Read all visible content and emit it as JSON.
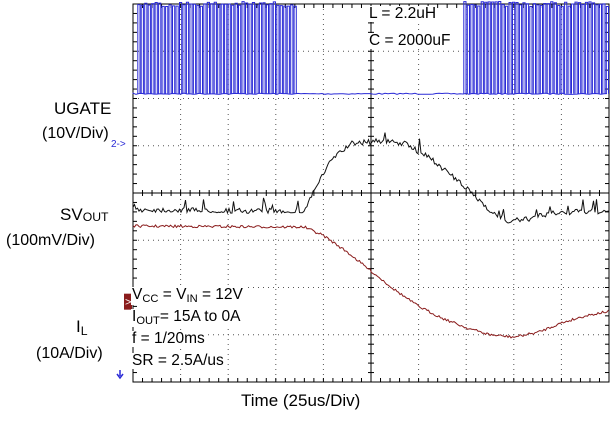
{
  "chart_data": {
    "type": "line",
    "title": "",
    "xlabel": "Time (25us/Div)",
    "x_div_unit": "us",
    "x_div_scale": 25,
    "xlim_div": [
      0,
      10
    ],
    "ylim_div": [
      0,
      8
    ],
    "grid": true,
    "grid_style": "dotted",
    "channel_labels": {
      "ugate_name": "UGATE",
      "ugate_scale": "(10V/Div)",
      "sv_prefix": "SV",
      "sv_sub": "OUT",
      "sv_scale": "(100mV/Div)",
      "il_prefix": "I",
      "il_sub": "L",
      "il_scale": "(10A/Div)"
    },
    "markers": {
      "ugate_ref": "2->",
      "il_ref": ">"
    },
    "annotations_top": {
      "l": "L = 2.2uH",
      "c": "C = 2000uF"
    },
    "annotations_bottom": {
      "vcc_prefix": "V",
      "vcc_sub": "CC",
      "vcc_mid": " = V",
      "vin_sub": "IN",
      "vcc_tail": " = 12V",
      "iout_prefix": "I",
      "iout_sub": "OUT",
      "iout_tail": "= 15A to 0A",
      "freq": "f = 1/20ms",
      "sr": "SR = 2.5A/us"
    },
    "series": [
      {
        "name": "UGATE",
        "unit": "V/Div",
        "scale": 10,
        "color": "#2a2ad6",
        "baseline_div": 6.1,
        "pulse_height_div": 1.9,
        "pulse_period_div": 0.073,
        "active_windows_div": [
          [
            0.0,
            3.45
          ],
          [
            6.85,
            10.0
          ]
        ]
      },
      {
        "name": "SVOUT",
        "unit": "mV/Div",
        "scale": 100,
        "color": "#111111",
        "x_div": [
          0,
          2.5,
          3.6,
          3.8,
          4.2,
          4.6,
          5.2,
          5.7,
          6.3,
          7.0,
          7.6,
          7.9,
          8.3,
          8.8,
          9.4,
          10
        ],
        "y_div": [
          3.65,
          3.62,
          3.62,
          4.05,
          4.75,
          5.05,
          5.1,
          5.05,
          4.7,
          4.1,
          3.55,
          3.4,
          3.45,
          3.58,
          3.6,
          3.62
        ]
      },
      {
        "name": "IL",
        "unit": "A/Div",
        "scale": 10,
        "color": "#8a1c1c",
        "x_div": [
          0,
          3.6,
          4.0,
          4.5,
          5.0,
          5.5,
          6.0,
          6.5,
          7.0,
          7.5,
          8.0,
          8.5,
          9.0,
          9.5,
          10
        ],
        "y_div": [
          3.3,
          3.28,
          3.1,
          2.75,
          2.35,
          1.95,
          1.6,
          1.35,
          1.15,
          1.0,
          0.95,
          1.05,
          1.25,
          1.4,
          1.5
        ]
      }
    ]
  }
}
